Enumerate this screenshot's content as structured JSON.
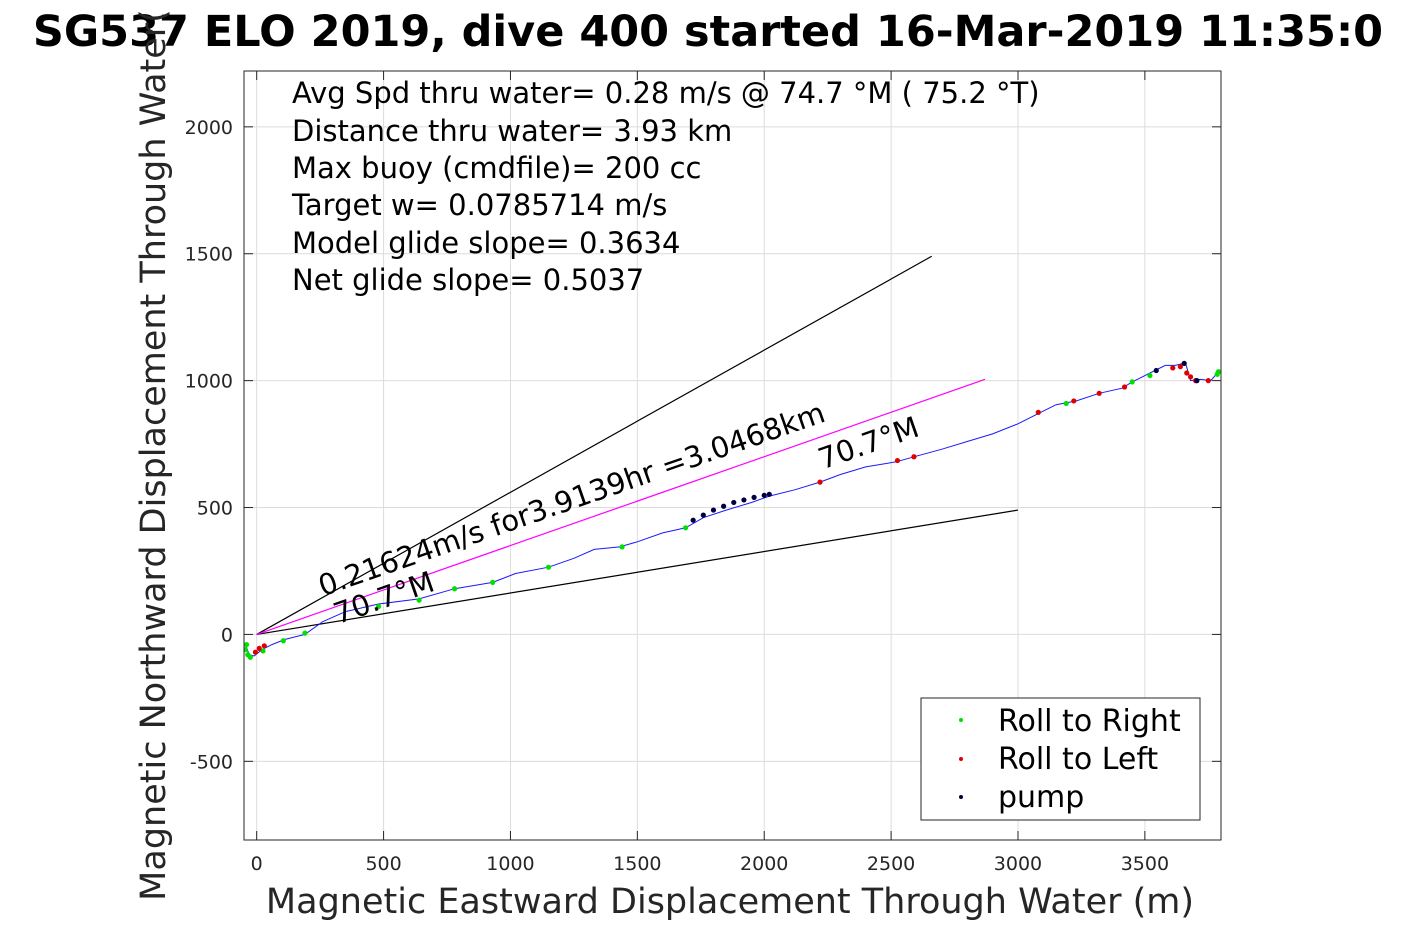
{
  "chart_data": {
    "type": "line",
    "title": "SG537 ELO 2019, dive 400 started 16-Mar-2019 11:35:0",
    "xlabel": "Magnetic Eastward Displacement Through Water (m)",
    "ylabel": "Magnetic Northward Displacement Through Water(",
    "xlim": [
      -50,
      3800
    ],
    "ylim": [
      -810,
      2220
    ],
    "grid": true,
    "x_ticks": [
      {
        "value": 0,
        "label": "0"
      },
      {
        "value": 500,
        "label": "500"
      },
      {
        "value": 1000,
        "label": "1000"
      },
      {
        "value": 1500,
        "label": "1500"
      },
      {
        "value": 2000,
        "label": "2000"
      },
      {
        "value": 2500,
        "label": "2500"
      },
      {
        "value": 3000,
        "label": "3000"
      },
      {
        "value": 3500,
        "label": "3500"
      }
    ],
    "y_ticks": [
      {
        "value": -500,
        "label": "-500"
      },
      {
        "value": 0,
        "label": "0"
      },
      {
        "value": 500,
        "label": "500"
      },
      {
        "value": 1000,
        "label": "1000"
      },
      {
        "value": 1500,
        "label": "1500"
      },
      {
        "value": 2000,
        "label": "2000"
      }
    ],
    "annotations": [
      "Avg Spd thru water=  0.28 m/s @  74.7 °M ( 75.2 °T)",
      "Distance thru water=  3.93 km",
      "Max buoy (cmdfile)= 200 cc",
      "Target w= 0.0785714 m/s",
      "Model glide slope= 0.3634",
      "Net glide slope= 0.5037"
    ],
    "diagonal_labels": [
      {
        "text": "0.21624m/s for3.9139hr =3.0468km",
        "x": 260,
        "y": 150,
        "angle_deg": 19.2
      },
      {
        "text": "70.7°M",
        "x": 320,
        "y": 40,
        "angle_deg": 19.2
      },
      {
        "text": "70.7°M",
        "x": 2230,
        "y": 650,
        "angle_deg": 19.2
      }
    ],
    "guide_lines": [
      {
        "name": "upper-envelope",
        "color": "#000000",
        "points": [
          [
            0,
            0
          ],
          [
            2660,
            1490
          ]
        ]
      },
      {
        "name": "lower-envelope",
        "color": "#000000",
        "points": [
          [
            0,
            0
          ],
          [
            3000,
            490
          ]
        ]
      },
      {
        "name": "current-vector",
        "color": "#ff00ff",
        "points": [
          [
            0,
            0
          ],
          [
            2870,
            1005
          ]
        ]
      }
    ],
    "series": [
      {
        "name": "",
        "color": "#1a1aff",
        "x": [
          -40,
          -30,
          -10,
          20,
          60,
          110,
          190,
          260,
          350,
          480,
          640,
          780,
          930,
          1020,
          1150,
          1250,
          1330,
          1430,
          1500,
          1600,
          1690,
          1760,
          1850,
          1950,
          2020,
          2120,
          2220,
          2300,
          2400,
          2520,
          2590,
          2700,
          2800,
          2900,
          3000,
          3080,
          3150,
          3230,
          3320,
          3410,
          3450,
          3500,
          3540,
          3580,
          3620,
          3660,
          3680,
          3720,
          3760,
          3790
        ],
        "y": [
          -50,
          -80,
          -85,
          -60,
          -40,
          -20,
          0,
          50,
          90,
          120,
          140,
          180,
          205,
          240,
          265,
          300,
          335,
          345,
          365,
          400,
          420,
          460,
          490,
          520,
          545,
          570,
          600,
          630,
          660,
          680,
          700,
          730,
          760,
          790,
          830,
          870,
          905,
          920,
          950,
          970,
          995,
          1020,
          1040,
          1060,
          1060,
          1070,
          1000,
          1005,
          1000,
          1035
        ]
      },
      {
        "name": "Roll to Right",
        "color": "#00e000",
        "x": [
          -40,
          -45,
          -35,
          -25,
          25,
          105,
          190,
          480,
          640,
          780,
          930,
          1150,
          1440,
          1690,
          3190,
          3450,
          3520,
          3790,
          3785
        ],
        "y": [
          -40,
          -60,
          -80,
          -90,
          -65,
          -25,
          5,
          110,
          135,
          180,
          205,
          265,
          345,
          420,
          910,
          995,
          1020,
          1035,
          1025
        ]
      },
      {
        "name": "Roll to Left",
        "color": "#e00000",
        "x": [
          -5,
          10,
          30,
          2220,
          2525,
          2590,
          3080,
          3220,
          3320,
          3420,
          3610,
          3640,
          3665,
          3680,
          3700,
          3750
        ],
        "y": [
          -70,
          -55,
          -45,
          600,
          685,
          700,
          875,
          920,
          950,
          975,
          1050,
          1055,
          1030,
          1015,
          1000,
          1000
        ]
      },
      {
        "name": "pump",
        "color": "#000040",
        "x": [
          1720,
          1760,
          1800,
          1840,
          1880,
          1920,
          1960,
          2000,
          2020,
          3545,
          3655,
          3705
        ],
        "y": [
          450,
          470,
          490,
          505,
          520,
          530,
          540,
          548,
          552,
          1040,
          1068,
          1000
        ]
      }
    ],
    "legend": {
      "position": "bottom-right",
      "entries": [
        "Roll to Right",
        "Roll to Left",
        "pump"
      ]
    }
  }
}
